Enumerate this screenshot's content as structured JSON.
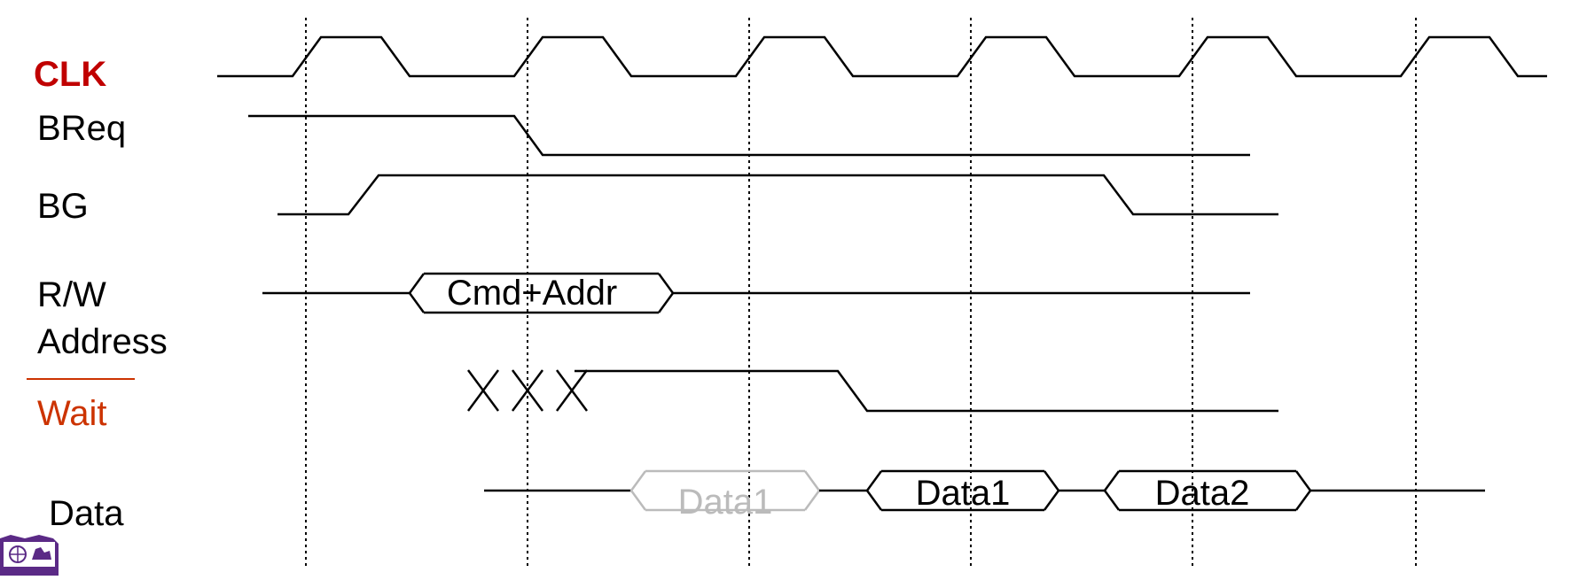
{
  "signals": {
    "clk": "CLK",
    "breq": "BReq",
    "bg": "BG",
    "rw": "R/W",
    "address": "Address",
    "wait": "Wait",
    "data": "Data"
  },
  "bus_values": {
    "cmd_addr": "Cmd+Addr",
    "data1_ghost": "Data1",
    "data1": "Data1",
    "data2": "Data2"
  },
  "colors": {
    "clk_label": "#c00000",
    "wait_label": "#cc3300",
    "trace": "#000000",
    "ghost": "#bbbbbb",
    "logo": "#5b2a86"
  },
  "icons": {
    "logo": "university-crest-icon"
  }
}
